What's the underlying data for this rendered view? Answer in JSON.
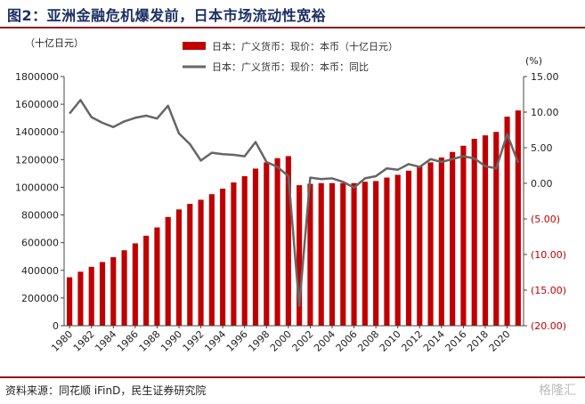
{
  "header": {
    "title": "图2：亚洲金融危机爆发前，日本市场流动性宽裕"
  },
  "footer": {
    "source": "资料来源：同花顺 iFinD，民生证券研究院",
    "watermark": "格隆汇"
  },
  "chart_data": {
    "type": "bar",
    "title": "图2：亚洲金融危机爆发前，日本市场流动性宽裕",
    "left_axis_unit": "（十亿日元）",
    "right_axis_unit": "(%)",
    "ylim_left": [
      0,
      1800000
    ],
    "ylim_right": [
      -20,
      15
    ],
    "left_ticks": [
      "1800000",
      "1600000",
      "1400000",
      "1200000",
      "1000000",
      "800000",
      "600000",
      "400000",
      "200000",
      "0"
    ],
    "right_ticks": [
      "15.00",
      "10.00",
      "5.00",
      "0.00",
      "(5.00)",
      "(10.00)",
      "(15.00)",
      "(20.00)"
    ],
    "x_tick_labels": [
      "1980",
      "1982",
      "1984",
      "1986",
      "1988",
      "1990",
      "1992",
      "1994",
      "1996",
      "1998",
      "2000",
      "2002",
      "2004",
      "2006",
      "2008",
      "2010",
      "2012",
      "2014",
      "2016",
      "2018",
      "2020"
    ],
    "legend_position": "top-right",
    "grid": false,
    "categories": [
      1980,
      1981,
      1982,
      1983,
      1984,
      1985,
      1986,
      1987,
      1988,
      1989,
      1990,
      1991,
      1992,
      1993,
      1994,
      1995,
      1996,
      1997,
      1998,
      1999,
      2000,
      2001,
      2002,
      2003,
      2004,
      2005,
      2006,
      2007,
      2008,
      2009,
      2010,
      2011,
      2012,
      2013,
      2014,
      2015,
      2016,
      2017,
      2018,
      2019,
      2020,
      2021
    ],
    "series": [
      {
        "name": "日本：广义货币：现价：本币（十亿日元）",
        "type": "bar",
        "axis": "left",
        "color": "#c00000",
        "values": [
          350000,
          390000,
          425000,
          460000,
          495000,
          545000,
          595000,
          650000,
          710000,
          785000,
          840000,
          880000,
          910000,
          950000,
          990000,
          1035000,
          1080000,
          1135000,
          1180000,
          1210000,
          1225000,
          1015000,
          1025000,
          1030000,
          1030000,
          1030000,
          1030000,
          1040000,
          1045000,
          1070000,
          1090000,
          1120000,
          1150000,
          1180000,
          1215000,
          1255000,
          1300000,
          1350000,
          1375000,
          1400000,
          1510000,
          1555000
        ]
      },
      {
        "name": "日本：广义货币：现价：本币：同比",
        "type": "line",
        "axis": "right",
        "color": "#666666",
        "values": [
          9.8,
          11.7,
          9.3,
          8.5,
          7.9,
          8.7,
          9.2,
          9.5,
          9.1,
          10.9,
          7.0,
          5.5,
          3.2,
          4.3,
          4.1,
          4.0,
          3.8,
          5.8,
          3.0,
          2.3,
          1.0,
          -17.2,
          0.8,
          0.6,
          0.7,
          0.2,
          -0.6,
          0.7,
          1.0,
          2.1,
          1.9,
          2.7,
          2.3,
          3.4,
          3.0,
          3.4,
          3.8,
          3.5,
          2.4,
          2.1,
          6.9,
          2.9
        ]
      }
    ]
  }
}
